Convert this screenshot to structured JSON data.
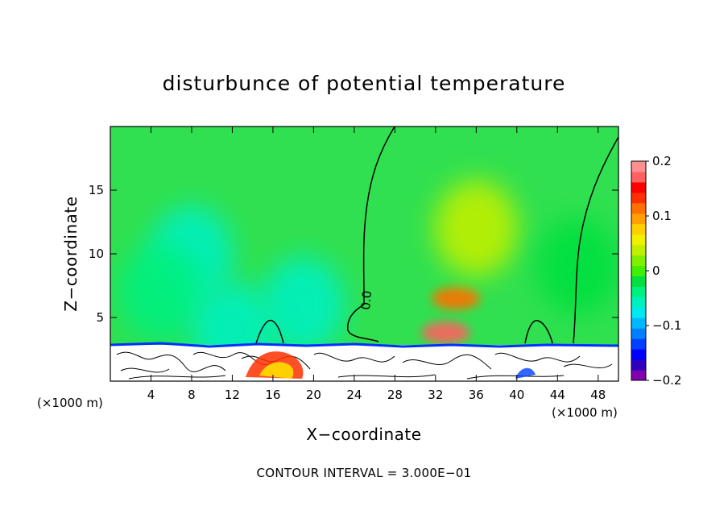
{
  "chart_data": {
    "type": "heatmap",
    "title": "disturbunce of potential temperature",
    "xlabel": "X−coordinate",
    "ylabel": "Z−coordinate",
    "x_unit": "(×1000 m)",
    "xlim": [
      0,
      50
    ],
    "ylim": [
      0,
      20
    ],
    "x_ticks": [
      4,
      8,
      12,
      16,
      20,
      24,
      28,
      32,
      36,
      40,
      44,
      48
    ],
    "y_ticks": [
      5,
      10,
      15
    ],
    "contour_interval_text": "CONTOUR INTERVAL = 3.000E−01",
    "contour_label": "0.0",
    "colorbar": {
      "min": -0.2,
      "max": 0.2,
      "tick_values": [
        0.2,
        0.1,
        0,
        -0.1,
        -0.2
      ],
      "tick_labels": [
        "0.2",
        "0.1",
        "0",
        "−0.1",
        "−0.2"
      ],
      "colors": [
        "#8000b0",
        "#3000c0",
        "#0000ff",
        "#0040ff",
        "#0080ff",
        "#00b8ff",
        "#00e8f0",
        "#00f0c0",
        "#00f080",
        "#00e040",
        "#40f000",
        "#80f000",
        "#c0f000",
        "#f0f000",
        "#ffd000",
        "#ffa000",
        "#ff7000",
        "#ff3000",
        "#ff0000",
        "#ff6060",
        "#ff9090"
      ]
    },
    "anomalies": [
      {
        "x": 34,
        "z": 6.5,
        "value": 0.11
      },
      {
        "x": 33,
        "z": 3.8,
        "value": 0.17
      },
      {
        "x": 36,
        "z": 12,
        "value": 0.045
      },
      {
        "x": 8,
        "z": 10,
        "value": -0.05
      },
      {
        "x": 19,
        "z": 6,
        "value": -0.06
      },
      {
        "x": 5,
        "z": 7,
        "value": -0.03
      },
      {
        "x": 46,
        "z": 9,
        "value": -0.02
      },
      {
        "x": 12,
        "z": 4,
        "value": -0.06
      },
      {
        "x": 15.5,
        "z": 1.0,
        "value": 0.18
      }
    ]
  }
}
